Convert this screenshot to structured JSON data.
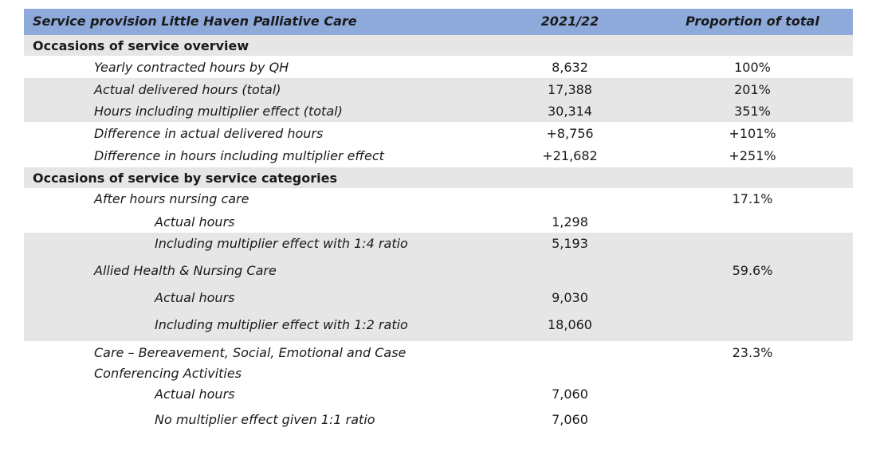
{
  "header": {
    "title": "Service provision Little Haven Palliative Care",
    "col_year": "2021/22",
    "col_proportion": "Proportion of total"
  },
  "overview": {
    "heading": "Occasions of service overview",
    "rows": [
      {
        "label": "Yearly contracted hours by QH",
        "value": "8,632",
        "proportion": "100%"
      },
      {
        "label": "Actual delivered hours (total)",
        "value": "17,388",
        "proportion": "201%"
      },
      {
        "label": "Hours including multiplier effect (total)",
        "value": "30,314",
        "proportion": "351%"
      },
      {
        "label": "Difference in actual delivered hours",
        "value": "+8,756",
        "proportion": "+101%"
      },
      {
        "label": "Difference in hours including multiplier effect",
        "value": "+21,682",
        "proportion": "+251%"
      }
    ]
  },
  "categories": {
    "heading": "Occasions of service by service categories",
    "after_hours": {
      "label": "After hours nursing care",
      "proportion": "17.1%",
      "actual_label": "Actual hours",
      "actual_value": "1,298",
      "multiplier_label": "Including multiplier effect with 1:4 ratio",
      "multiplier_value": "5,193"
    },
    "allied": {
      "label": "Allied Health & Nursing Care",
      "proportion": "59.6%",
      "actual_label": "Actual hours",
      "actual_value": "9,030",
      "multiplier_label": "Including multiplier effect with 1:2 ratio",
      "multiplier_value": "18,060"
    },
    "care": {
      "label_line1": "Care – Bereavement, Social, Emotional and Case",
      "label_line2": "Conferencing Activities",
      "proportion": "23.3%",
      "actual_label": "Actual hours",
      "actual_value": "7,060",
      "multiplier_label": "No multiplier effect given 1:1 ratio",
      "multiplier_value": "7,060"
    }
  }
}
